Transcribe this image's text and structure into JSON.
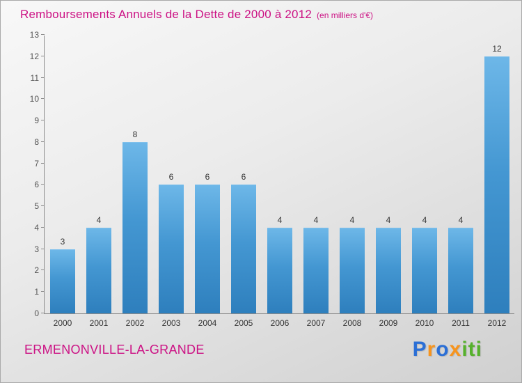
{
  "header": {
    "title": "Remboursements Annuels de la Dette de 2000 à 2012",
    "subtitle": "(en milliers d'€)"
  },
  "chart_data": {
    "type": "bar",
    "title": "Remboursements Annuels de la Dette de 2000 à 2012",
    "subtitle": "(en milliers d'€)",
    "categories": [
      "2000",
      "2001",
      "2002",
      "2003",
      "2004",
      "2005",
      "2006",
      "2007",
      "2008",
      "2009",
      "2010",
      "2011",
      "2012"
    ],
    "values": [
      3,
      4,
      8,
      6,
      6,
      6,
      4,
      4,
      4,
      4,
      4,
      4,
      12
    ],
    "xlabel": "",
    "ylabel": "",
    "ylim": [
      0,
      13
    ],
    "ytick_step": 1,
    "grid": false,
    "legend": false,
    "bar_color_top": "#6db7e8",
    "bar_color_bottom": "#2e7fbd"
  },
  "footer": {
    "commune": "ERMENONVILLE-LA-GRANDE",
    "brand_letters": [
      {
        "char": "P",
        "color": "#2b6fd6"
      },
      {
        "char": "r",
        "color": "#f7941d"
      },
      {
        "char": "o",
        "color": "#2b6fd6"
      },
      {
        "char": "x",
        "color": "#f7941d"
      },
      {
        "char": "i",
        "color": "#56b12c"
      },
      {
        "char": "t",
        "color": "#56b12c"
      },
      {
        "char": "i",
        "color": "#56b12c"
      }
    ]
  },
  "colors": {
    "title": "#cc1184",
    "axis": "#8a8a8a",
    "tick_label": "#555555",
    "value_label": "#333333",
    "background_light": "#f8f8f8",
    "background_dark": "#d0d0d0"
  }
}
